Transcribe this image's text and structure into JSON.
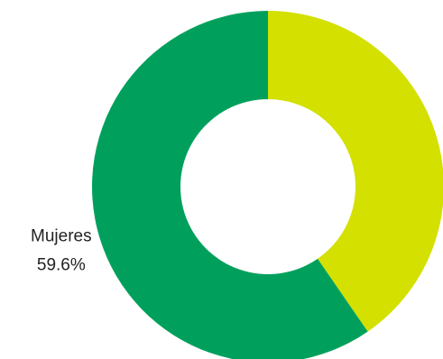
{
  "chart_data": {
    "type": "donut",
    "categories": [
      null,
      "Mujeres"
    ],
    "values": [
      40.4,
      59.6
    ],
    "value_labels": [
      null,
      "59.6%"
    ],
    "colors": [
      "#d3e000",
      "#00a05c"
    ]
  }
}
